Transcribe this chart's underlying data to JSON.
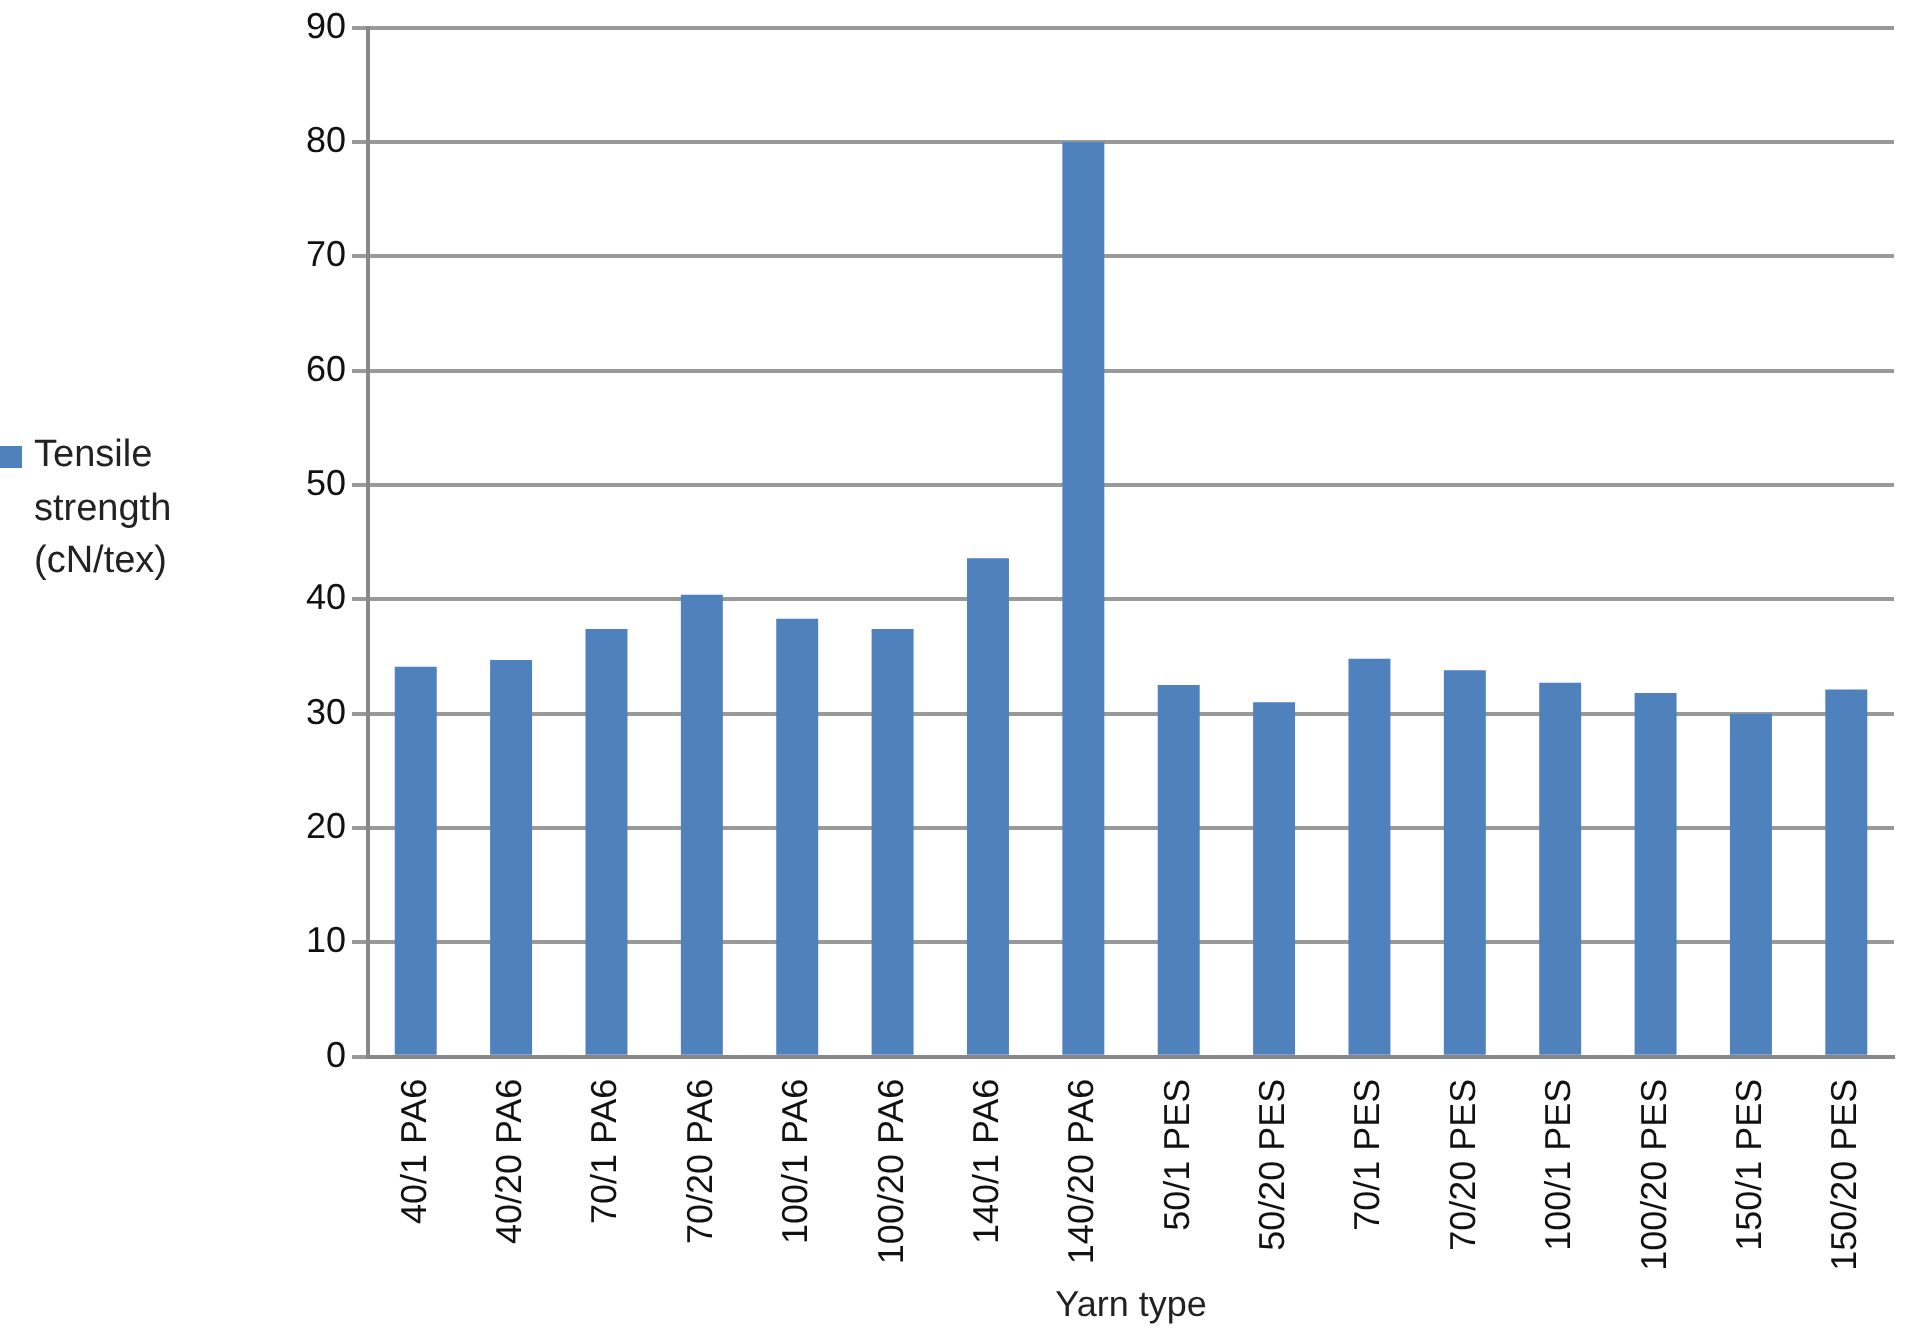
{
  "chart_data": {
    "type": "bar",
    "xlabel": "Yarn type",
    "categories": [
      "40/1 PA6",
      "40/20 PA6",
      "70/1 PA6",
      "70/20 PA6",
      "100/1 PA6",
      "100/20 PA6",
      "140/1 PA6",
      "140/20 PA6",
      "50/1 PES",
      "50/20 PES",
      "70/1 PES",
      "70/20 PES",
      "100/1 PES",
      "100/20 PES",
      "150/1 PES",
      "150/20 PES"
    ],
    "series": [
      {
        "name": "Tensile strength (cN/tex)",
        "color": "#4f81bd",
        "values": [
          34.1,
          34.7,
          37.4,
          40.4,
          38.3,
          37.4,
          43.6,
          80,
          32.5,
          31,
          34.8,
          33.8,
          32.7,
          31.8,
          30,
          32.1
        ]
      }
    ],
    "ylim": [
      0,
      90
    ],
    "yticks": [
      0,
      10,
      20,
      30,
      40,
      50,
      60,
      70,
      80,
      90
    ],
    "grid": "y",
    "legend": "left"
  }
}
